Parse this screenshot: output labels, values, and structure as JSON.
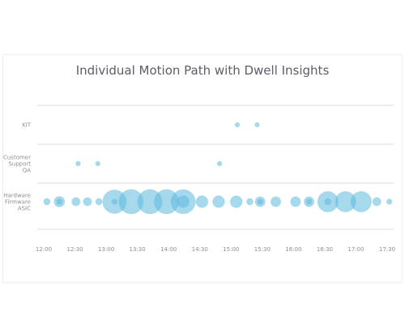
{
  "chart_data": {
    "type": "scatter",
    "title": "Individual Motion Path with Dwell Insights",
    "xlabel": "",
    "ylabel": "",
    "xlim": [
      "11:50",
      "17:30"
    ],
    "x_ticks": [
      "12:00",
      "12:30",
      "13:00",
      "13:30",
      "14:00",
      "14:30",
      "15:00",
      "15:30",
      "16:00",
      "16:30",
      "17:00",
      "17:30"
    ],
    "categories": [
      {
        "key": "kit",
        "lines": [
          "KIT"
        ]
      },
      {
        "key": "csqa",
        "lines": [
          "Customer",
          "Support",
          "QA"
        ]
      },
      {
        "key": "hw",
        "lines": [
          "Hardware",
          "Firmware",
          "ASIC"
        ]
      }
    ],
    "grid": true,
    "legend": "none",
    "color": "#5fb9df",
    "points": [
      {
        "time": "15:06",
        "category": "kit",
        "dwell": 1
      },
      {
        "time": "15:25",
        "category": "kit",
        "dwell": 1
      },
      {
        "time": "12:33",
        "category": "csqa",
        "dwell": 1
      },
      {
        "time": "12:52",
        "category": "csqa",
        "dwell": 1
      },
      {
        "time": "14:49",
        "category": "csqa",
        "dwell": 1
      },
      {
        "time": "12:03",
        "category": "hw",
        "dwell": 3
      },
      {
        "time": "12:15",
        "category": "hw",
        "dwell": 8
      },
      {
        "time": "12:15",
        "category": "hw",
        "dwell": 2
      },
      {
        "time": "12:31",
        "category": "hw",
        "dwell": 5
      },
      {
        "time": "12:42",
        "category": "hw",
        "dwell": 5
      },
      {
        "time": "12:53",
        "category": "hw",
        "dwell": 3
      },
      {
        "time": "13:08",
        "category": "hw",
        "dwell": 40
      },
      {
        "time": "13:08",
        "category": "hw",
        "dwell": 2
      },
      {
        "time": "13:24",
        "category": "hw",
        "dwell": 50
      },
      {
        "time": "13:42",
        "category": "hw",
        "dwell": 48
      },
      {
        "time": "13:58",
        "category": "hw",
        "dwell": 45
      },
      {
        "time": "14:14",
        "category": "hw",
        "dwell": 42
      },
      {
        "time": "14:14",
        "category": "hw",
        "dwell": 10
      },
      {
        "time": "14:32",
        "category": "hw",
        "dwell": 10
      },
      {
        "time": "14:48",
        "category": "hw",
        "dwell": 10
      },
      {
        "time": "15:05",
        "category": "hw",
        "dwell": 10
      },
      {
        "time": "15:18",
        "category": "hw",
        "dwell": 3
      },
      {
        "time": "15:28",
        "category": "hw",
        "dwell": 7
      },
      {
        "time": "15:28",
        "category": "hw",
        "dwell": 2
      },
      {
        "time": "15:43",
        "category": "hw",
        "dwell": 7
      },
      {
        "time": "16:02",
        "category": "hw",
        "dwell": 7
      },
      {
        "time": "16:15",
        "category": "hw",
        "dwell": 7
      },
      {
        "time": "16:15",
        "category": "hw",
        "dwell": 2
      },
      {
        "time": "16:33",
        "category": "hw",
        "dwell": 30
      },
      {
        "time": "16:33",
        "category": "hw",
        "dwell": 3
      },
      {
        "time": "16:50",
        "category": "hw",
        "dwell": 30
      },
      {
        "time": "17:05",
        "category": "hw",
        "dwell": 30
      },
      {
        "time": "17:20",
        "category": "hw",
        "dwell": 5
      },
      {
        "time": "17:32",
        "category": "hw",
        "dwell": 2
      }
    ]
  }
}
